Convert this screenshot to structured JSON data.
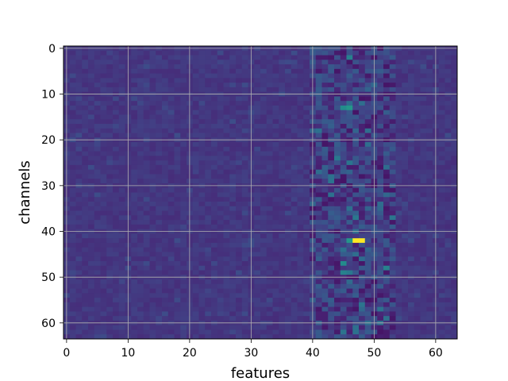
{
  "chart_data": {
    "type": "heatmap",
    "title": "",
    "xlabel": "features",
    "ylabel": "channels",
    "rows": 64,
    "cols": 64,
    "xlim": [
      -0.5,
      63.5
    ],
    "ylim": [
      63.5,
      -0.5
    ],
    "x_ticks": [
      0,
      10,
      20,
      30,
      40,
      50,
      60
    ],
    "y_ticks": [
      0,
      10,
      20,
      30,
      40,
      50,
      60
    ],
    "grid": true,
    "colormap": "viridis",
    "value_range": [
      0,
      1
    ],
    "background_level": 0.2,
    "dark_band_columns": [
      40,
      53
    ],
    "hotspots": [
      {
        "channel": 42,
        "feature": 47,
        "value": 1.0
      },
      {
        "channel": 42,
        "feature": 48,
        "value": 1.0
      },
      {
        "channel": 42,
        "feature": 46,
        "value": 0.65
      },
      {
        "channel": 13,
        "feature": 46,
        "value": 0.65
      },
      {
        "channel": 13,
        "feature": 45,
        "value": 0.6
      },
      {
        "channel": 2,
        "feature": 46,
        "value": 0.55
      },
      {
        "channel": 47,
        "feature": 45,
        "value": 0.6
      },
      {
        "channel": 49,
        "feature": 45,
        "value": 0.55
      },
      {
        "channel": 49,
        "feature": 46,
        "value": 0.5
      },
      {
        "channel": 48,
        "feature": 52,
        "value": 0.55
      },
      {
        "channel": 24,
        "feature": 44,
        "value": 0.5
      },
      {
        "channel": 12,
        "feature": 48,
        "value": 0.45
      },
      {
        "channel": 18,
        "feature": 49,
        "value": 0.45
      },
      {
        "channel": 37,
        "feature": 47,
        "value": 0.5
      },
      {
        "channel": 40,
        "feature": 47,
        "value": 0.45
      },
      {
        "channel": 21,
        "feature": 49,
        "value": 0.45
      },
      {
        "channel": 60,
        "feature": 51,
        "value": 0.45
      },
      {
        "channel": 45,
        "feature": 47,
        "value": 0.45
      },
      {
        "channel": 27,
        "feature": 46,
        "value": 0.4
      },
      {
        "channel": 35,
        "feature": 49,
        "value": 0.4
      }
    ]
  }
}
